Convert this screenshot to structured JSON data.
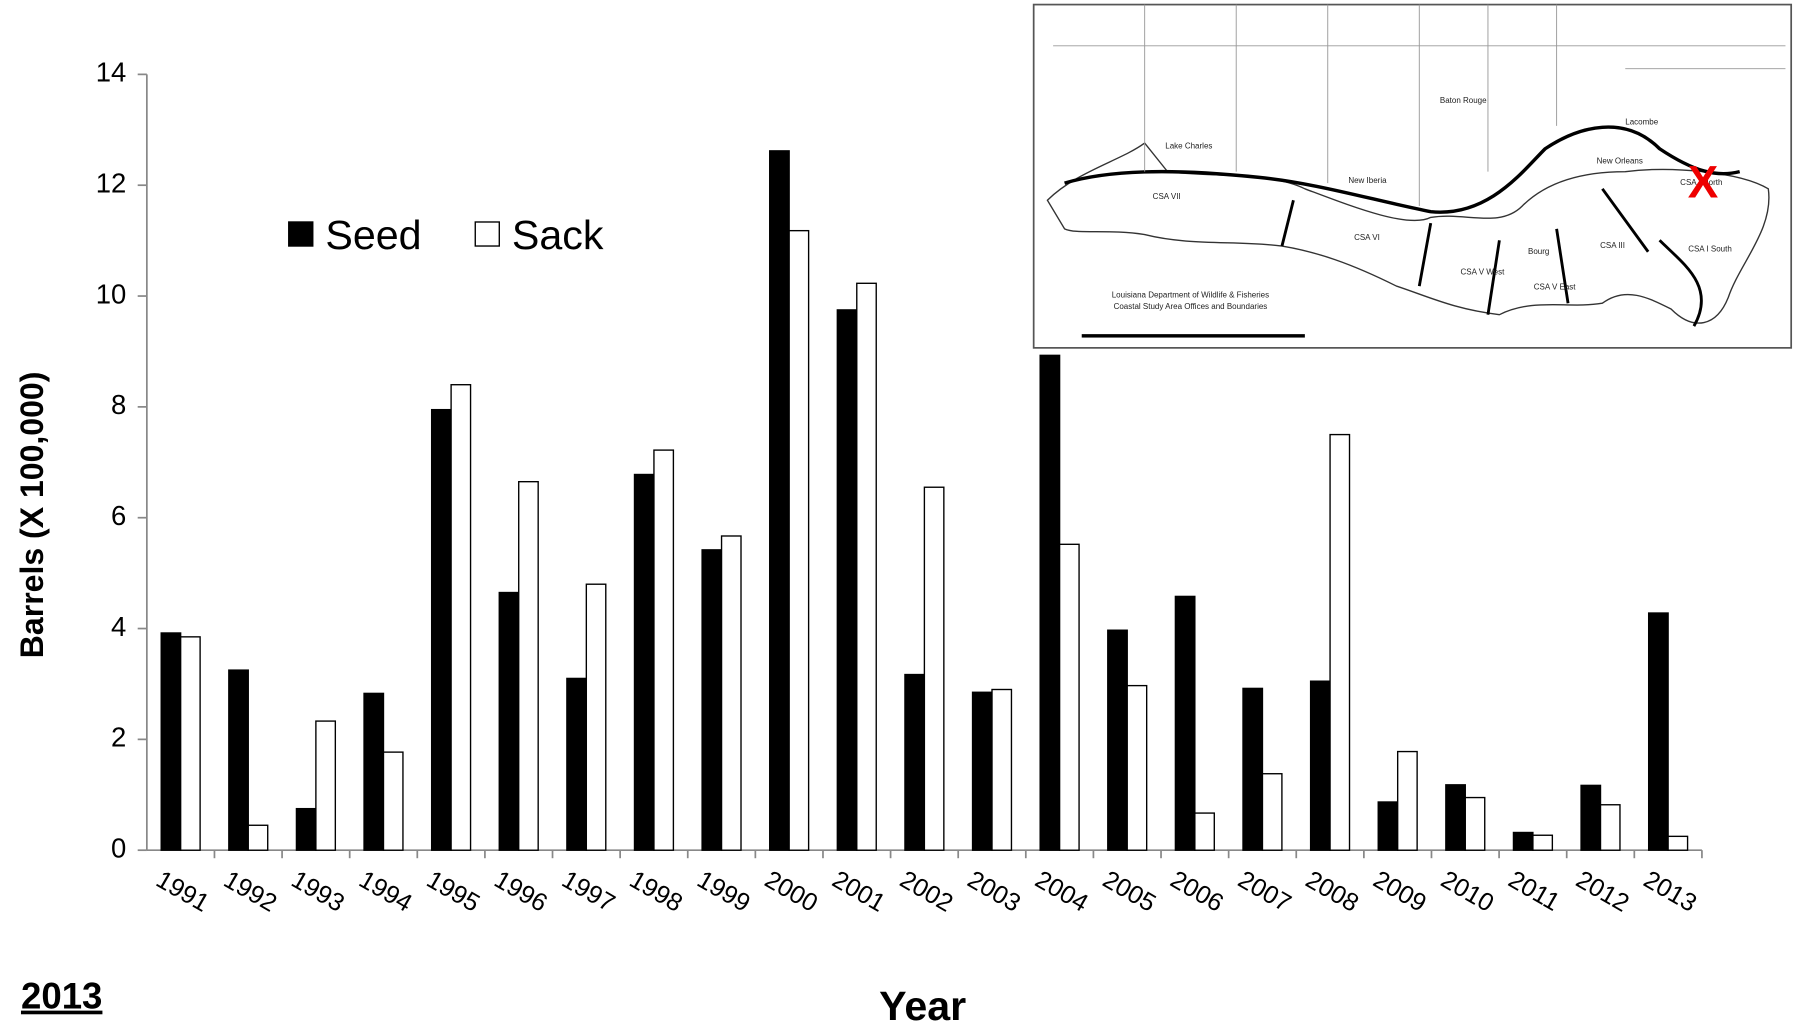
{
  "chart_data": {
    "type": "bar",
    "categories": [
      "1991",
      "1992",
      "1993",
      "1994",
      "1995",
      "1996",
      "1997",
      "1998",
      "1999",
      "2000",
      "2001",
      "2002",
      "2003",
      "2004",
      "2005",
      "2006",
      "2007",
      "2008",
      "2009",
      "2010",
      "2011",
      "2012",
      "2013"
    ],
    "series": [
      {
        "name": "Seed",
        "color": "#000000",
        "values": [
          3.92,
          3.25,
          0.75,
          2.83,
          7.95,
          4.65,
          3.1,
          6.78,
          5.42,
          12.62,
          9.75,
          3.17,
          2.85,
          8.93,
          3.97,
          4.58,
          2.92,
          3.05,
          0.87,
          1.18,
          0.32,
          1.17,
          4.28
        ]
      },
      {
        "name": "Sack",
        "color": "#ffffff",
        "values": [
          3.85,
          0.45,
          2.33,
          1.77,
          8.4,
          6.65,
          4.8,
          7.22,
          5.67,
          11.18,
          10.23,
          6.55,
          2.9,
          5.52,
          2.97,
          0.67,
          1.38,
          7.5,
          1.78,
          0.95,
          0.27,
          0.82,
          0.25
        ]
      }
    ],
    "ylabel": "Barrels (X 100,000)",
    "xlabel": "Year",
    "ylim": [
      0,
      14
    ],
    "yticks": [
      0,
      2,
      4,
      6,
      8,
      10,
      12,
      14
    ],
    "note": "2013",
    "map": {
      "marker": "X",
      "labels": [
        "Baton Rouge",
        "Lacombe",
        "Lake Charles",
        "New Iberia",
        "New Orleans",
        "CSA VII",
        "CSA VI",
        "CSA V West",
        "CSA V East",
        "CSA III",
        "CSA I South",
        "CSA I North",
        "Bourg"
      ],
      "caption": [
        "Louisiana Department of Wildlife & Fisheries",
        "Coastal Study Area Offices and Boundaries"
      ]
    }
  }
}
